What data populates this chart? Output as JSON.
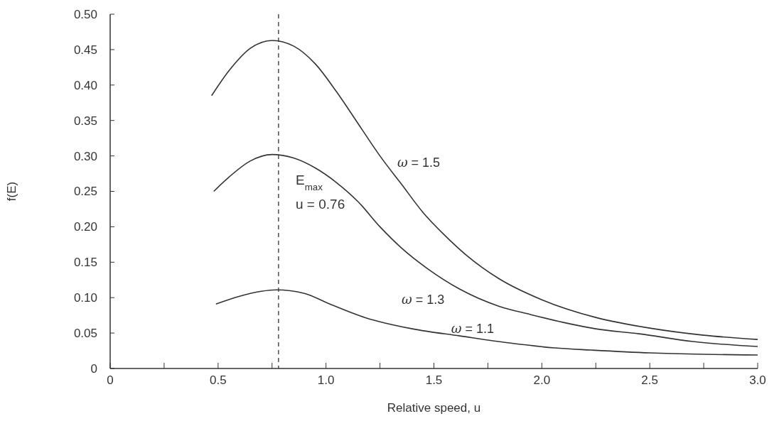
{
  "chart_data": {
    "type": "line",
    "xlabel": "Relative speed, u",
    "ylabel": "f(E)",
    "xlim": [
      0,
      3.0
    ],
    "xticks": [
      0,
      {
        "value": 0.25,
        "label": null
      },
      {
        "value": 0.5,
        "label": "0.5"
      },
      {
        "value": 0.75,
        "label": null
      },
      {
        "value": 1.0,
        "label": "1.0"
      },
      {
        "value": 1.25,
        "label": null
      },
      {
        "value": 1.5,
        "label": "1.5"
      },
      {
        "value": 1.75,
        "label": null
      },
      {
        "value": 2.0,
        "label": "2.0"
      },
      {
        "value": 2.25,
        "label": null
      },
      {
        "value": 2.5,
        "label": "2.5"
      },
      {
        "value": 2.75,
        "label": null
      },
      {
        "value": 3.0,
        "label": "3.0"
      }
    ],
    "ylim": [
      0,
      0.5
    ],
    "yticks": [
      0,
      0.05,
      {
        "value": 0.1,
        "label": "0.10"
      },
      0.15,
      {
        "value": 0.2,
        "label": "0.20"
      },
      0.25,
      {
        "value": 0.3,
        "label": "0.30"
      },
      0.35,
      {
        "value": 0.4,
        "label": "0.40"
      },
      0.45,
      {
        "value": 0.5,
        "label": "0.50"
      }
    ],
    "grid": false,
    "legend": false,
    "marker": "none",
    "line_style": "solid",
    "series": [
      {
        "name": "ω = 1.5",
        "color": "#333333",
        "x": [
          0.47,
          0.55,
          0.65,
          0.75,
          0.85,
          0.95,
          1.05,
          1.15,
          1.25,
          1.35,
          1.45,
          1.55,
          1.65,
          1.8,
          2.0,
          2.25,
          2.5,
          2.75,
          3.0
        ],
        "values": [
          0.385,
          0.42,
          0.452,
          0.463,
          0.455,
          0.43,
          0.39,
          0.345,
          0.3,
          0.26,
          0.22,
          0.188,
          0.16,
          0.127,
          0.097,
          0.072,
          0.057,
          0.047,
          0.041
        ]
      },
      {
        "name": "ω = 1.3",
        "color": "#333333",
        "x": [
          0.48,
          0.55,
          0.65,
          0.75,
          0.85,
          0.95,
          1.05,
          1.15,
          1.25,
          1.35,
          1.47,
          1.62,
          1.8,
          1.95,
          2.1,
          2.25,
          2.45,
          2.7,
          3.0
        ],
        "values": [
          0.25,
          0.27,
          0.293,
          0.302,
          0.297,
          0.283,
          0.262,
          0.235,
          0.2,
          0.17,
          0.141,
          0.112,
          0.088,
          0.076,
          0.065,
          0.056,
          0.049,
          0.038,
          0.031
        ]
      },
      {
        "name": "ω = 1.1",
        "color": "#333333",
        "x": [
          0.49,
          0.6,
          0.7,
          0.77,
          0.9,
          1.01,
          1.18,
          1.4,
          1.62,
          1.85,
          2.06,
          2.23,
          2.5,
          2.75,
          3.0
        ],
        "values": [
          0.091,
          0.102,
          0.109,
          0.111,
          0.106,
          0.092,
          0.072,
          0.056,
          0.046,
          0.036,
          0.029,
          0.026,
          0.022,
          0.02,
          0.019
        ]
      }
    ],
    "ref_lines": [
      {
        "axis": "x",
        "value": 0.78,
        "label": null,
        "line_style": "dashed",
        "color": "#333333"
      }
    ],
    "annotations": [
      "E$_{max}$",
      "u = 0.76"
    ]
  }
}
